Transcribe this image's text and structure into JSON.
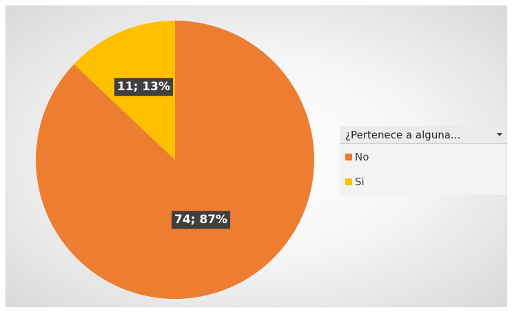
{
  "chart_data": {
    "type": "pie",
    "title": "",
    "series": [
      {
        "name": "¿Pertenece a alguna...",
        "categories": [
          "No",
          "Si"
        ],
        "values": [
          74,
          11
        ],
        "percentages": [
          "87%",
          "13%"
        ],
        "labels": [
          "74; 87%",
          "11; 13%"
        ]
      }
    ],
    "colors": [
      "#ED7D31",
      "#FFC000"
    ],
    "legend": {
      "position": "right",
      "title": "¿Pertenece a alguna..."
    }
  }
}
